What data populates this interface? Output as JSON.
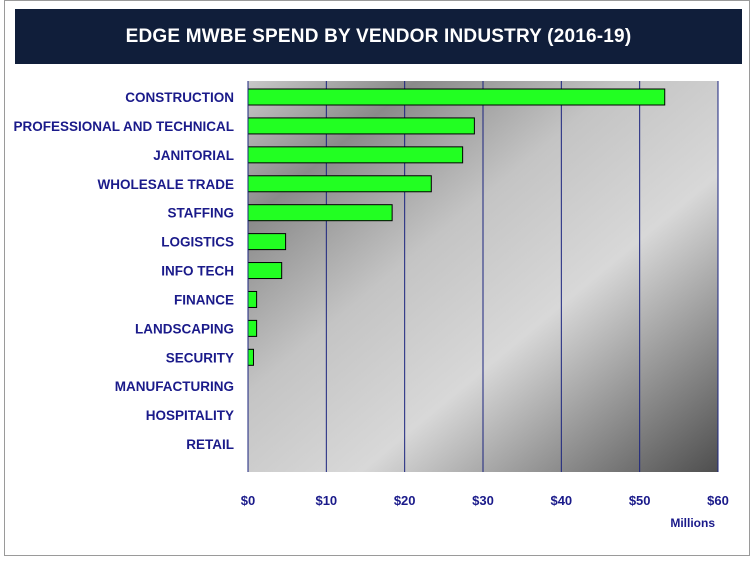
{
  "colors": {
    "title_background": "#101e3a",
    "title_text": "#ffffff",
    "bar_fill": "#22ff22",
    "bar_stroke": "#000000",
    "gridline": "#1a237e",
    "label_text": "#1a1a8a"
  },
  "chart_data": {
    "type": "bar",
    "orientation": "horizontal",
    "title": "EDGE MWBE SPEND BY VENDOR INDUSTRY (2016-19)",
    "xlabel": "Millions",
    "ylabel": "",
    "categories": [
      "CONSTRUCTION",
      "PROFESSIONAL AND TECHNICAL",
      "JANITORIAL",
      "WHOLESALE TRADE",
      "STAFFING",
      "LOGISTICS",
      "INFO TECH",
      "FINANCE",
      "LANDSCAPING",
      "SECURITY",
      "MANUFACTURING",
      "HOSPITALITY",
      "RETAIL"
    ],
    "values": [
      53.2,
      28.9,
      27.4,
      23.4,
      18.4,
      4.8,
      4.3,
      1.1,
      1.1,
      0.7,
      0,
      0,
      0
    ],
    "xlim": [
      0,
      60
    ],
    "xticks": [
      0,
      10,
      20,
      30,
      40,
      50,
      60
    ],
    "xtick_labels": [
      "$0",
      "$10",
      "$20",
      "$30",
      "$40",
      "$50",
      "$60"
    ],
    "grid": true,
    "legend": "none",
    "background": "gradient"
  }
}
